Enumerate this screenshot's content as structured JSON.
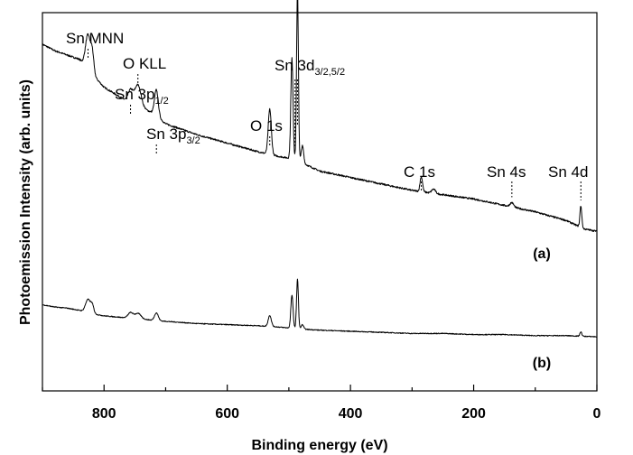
{
  "chart_data": {
    "type": "line",
    "title": "",
    "xlabel": "Binding energy (eV)",
    "ylabel": "Photoemission Intensity (arb. units)",
    "xlim": [
      900,
      0
    ],
    "x_reversed": true,
    "y_ticks_labeled": false,
    "grid": false,
    "x_ticks": [
      800,
      600,
      400,
      200,
      0
    ],
    "x_tick_labels": [
      "800",
      "600",
      "400",
      "200",
      "0"
    ],
    "peak_labels": [
      {
        "main": "Sn MNN",
        "sub": "",
        "energy": 826
      },
      {
        "main": "O KLL",
        "sub": "",
        "energy": 745
      },
      {
        "main": "Sn 3p",
        "sub": "1/2",
        "energy": 757
      },
      {
        "main": "Sn 3p",
        "sub": "3/2",
        "energy": 715
      },
      {
        "main": "O 1s",
        "sub": "",
        "energy": 531
      },
      {
        "main": "Sn 3d",
        "sub": "3/2,5/2",
        "energy": 490
      },
      {
        "main": "C 1s",
        "sub": "",
        "energy": 285
      },
      {
        "main": "Sn 4s",
        "sub": "",
        "energy": 138
      },
      {
        "main": "Sn 4d",
        "sub": "",
        "energy": 26
      }
    ],
    "series": [
      {
        "name": "(a)",
        "baseline": [
          [
            900,
            0.92
          ],
          [
            880,
            0.89
          ],
          [
            860,
            0.87
          ],
          [
            840,
            0.85
          ],
          [
            800,
            0.72
          ],
          [
            760,
            0.65
          ],
          [
            720,
            0.6
          ],
          [
            700,
            0.55
          ],
          [
            650,
            0.5
          ],
          [
            600,
            0.46
          ],
          [
            550,
            0.42
          ],
          [
            520,
            0.4
          ],
          [
            500,
            0.39
          ],
          [
            480,
            0.37
          ],
          [
            450,
            0.33
          ],
          [
            400,
            0.3
          ],
          [
            350,
            0.27
          ],
          [
            300,
            0.24
          ],
          [
            250,
            0.22
          ],
          [
            200,
            0.2
          ],
          [
            150,
            0.17
          ],
          [
            100,
            0.14
          ],
          [
            50,
            0.1
          ],
          [
            20,
            0.06
          ],
          [
            0,
            0.05
          ]
        ],
        "peaks": [
          [
            826,
            0.16,
            4
          ],
          [
            819,
            0.09,
            2.5
          ],
          [
            757,
            0.06,
            4
          ],
          [
            745,
            0.1,
            5
          ],
          [
            715,
            0.12,
            3
          ],
          [
            531,
            0.21,
            2.5
          ],
          [
            495,
            0.47,
            1.8
          ],
          [
            486,
            0.79,
            1.5
          ],
          [
            478,
            0.08,
            2
          ],
          [
            285,
            0.07,
            2
          ],
          [
            265,
            0.02,
            3
          ],
          [
            138,
            0.02,
            3
          ],
          [
            26,
            0.1,
            1.5
          ]
        ]
      },
      {
        "name": "(b)",
        "baseline": [
          [
            900,
            0.38
          ],
          [
            880,
            0.36
          ],
          [
            860,
            0.35
          ],
          [
            840,
            0.33
          ],
          [
            820,
            0.3
          ],
          [
            800,
            0.28
          ],
          [
            760,
            0.26
          ],
          [
            720,
            0.24
          ],
          [
            700,
            0.23
          ],
          [
            650,
            0.21
          ],
          [
            600,
            0.2
          ],
          [
            550,
            0.19
          ],
          [
            520,
            0.18
          ],
          [
            500,
            0.17
          ],
          [
            480,
            0.16
          ],
          [
            450,
            0.15
          ],
          [
            400,
            0.14
          ],
          [
            350,
            0.13
          ],
          [
            300,
            0.12
          ],
          [
            250,
            0.12
          ],
          [
            200,
            0.11
          ],
          [
            150,
            0.11
          ],
          [
            100,
            0.1
          ],
          [
            50,
            0.1
          ],
          [
            0,
            0.09
          ]
        ],
        "peaks": [
          [
            826,
            0.12,
            4
          ],
          [
            819,
            0.07,
            2.5
          ],
          [
            757,
            0.05,
            4
          ],
          [
            745,
            0.05,
            5
          ],
          [
            715,
            0.07,
            3
          ],
          [
            531,
            0.1,
            2.5
          ],
          [
            495,
            0.3,
            1.8
          ],
          [
            486,
            0.45,
            1.5
          ],
          [
            478,
            0.04,
            2
          ],
          [
            26,
            0.04,
            1.5
          ]
        ]
      }
    ]
  }
}
